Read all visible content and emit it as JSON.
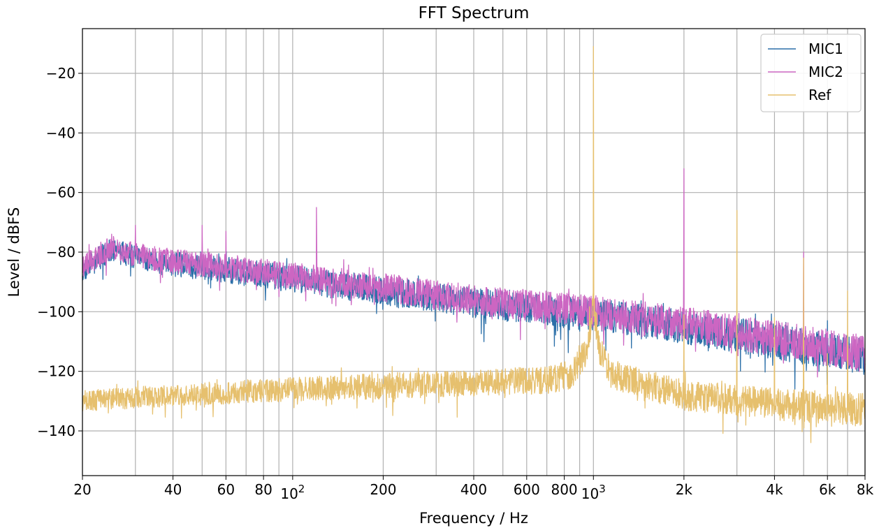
{
  "chart_data": {
    "type": "line",
    "title": "FFT Spectrum",
    "xlabel": "Frequency / Hz",
    "ylabel": "Level / dBFS",
    "x_scale": "log",
    "xlim": [
      20,
      8000
    ],
    "ylim": [
      -155,
      -5
    ],
    "grid": true,
    "grid_x_values": [
      20,
      30,
      40,
      50,
      60,
      70,
      80,
      90,
      100,
      200,
      300,
      400,
      500,
      600,
      700,
      800,
      900,
      1000,
      2000,
      3000,
      4000,
      5000,
      6000,
      7000,
      8000
    ],
    "grid_y_values": [
      -140,
      -120,
      -100,
      -80,
      -60,
      -40,
      -20
    ],
    "legend_position": "top-right",
    "x_ticks": [
      {
        "value": 20,
        "label": "20"
      },
      {
        "value": 40,
        "label": "40"
      },
      {
        "value": 60,
        "label": "60"
      },
      {
        "value": 80,
        "label": "80"
      },
      {
        "value": 100,
        "label": "10",
        "exponent": "2"
      },
      {
        "value": 200,
        "label": "200"
      },
      {
        "value": 400,
        "label": "400"
      },
      {
        "value": 600,
        "label": "600"
      },
      {
        "value": 800,
        "label": "800"
      },
      {
        "value": 1000,
        "label": "10",
        "exponent": "3"
      },
      {
        "value": 2000,
        "label": "2k"
      },
      {
        "value": 4000,
        "label": "4k"
      },
      {
        "value": 6000,
        "label": "6k"
      },
      {
        "value": 8000,
        "label": "8k"
      }
    ],
    "y_ticks": [
      {
        "value": -140,
        "label": "−140"
      },
      {
        "value": -120,
        "label": "−120"
      },
      {
        "value": -100,
        "label": "−100"
      },
      {
        "value": -80,
        "label": "−80"
      },
      {
        "value": -60,
        "label": "−60"
      },
      {
        "value": -40,
        "label": "−40"
      },
      {
        "value": -20,
        "label": "−20"
      }
    ],
    "series": [
      {
        "name": "MIC1",
        "color": "#2b6fa8",
        "baseline": [
          [
            20,
            -86
          ],
          [
            25,
            -79
          ],
          [
            30,
            -82
          ],
          [
            40,
            -84
          ],
          [
            60,
            -86
          ],
          [
            100,
            -89
          ],
          [
            200,
            -93
          ],
          [
            400,
            -97
          ],
          [
            800,
            -100
          ],
          [
            1000,
            -101
          ],
          [
            2000,
            -105
          ],
          [
            4000,
            -110
          ],
          [
            8000,
            -115
          ]
        ],
        "noise_amplitude": 4.5,
        "seed": 11,
        "peaks": [
          [
            1000,
            -90
          ],
          [
            2000,
            -99
          ],
          [
            4000,
            -107
          ],
          [
            5000,
            -106
          ],
          [
            6000,
            -103
          ]
        ]
      },
      {
        "name": "MIC2",
        "color": "#cc66c2",
        "baseline": [
          [
            20,
            -85
          ],
          [
            25,
            -78
          ],
          [
            30,
            -81
          ],
          [
            40,
            -83
          ],
          [
            60,
            -85
          ],
          [
            100,
            -88
          ],
          [
            200,
            -92
          ],
          [
            400,
            -96
          ],
          [
            800,
            -99
          ],
          [
            1000,
            -100
          ],
          [
            2000,
            -104
          ],
          [
            4000,
            -109
          ],
          [
            8000,
            -114
          ]
        ],
        "noise_amplitude": 4.5,
        "seed": 23,
        "peaks": [
          [
            30,
            -71
          ],
          [
            50,
            -71
          ],
          [
            60,
            -73
          ],
          [
            120,
            -65
          ],
          [
            1000,
            -88
          ],
          [
            2000,
            -52
          ],
          [
            5000,
            -80
          ]
        ]
      },
      {
        "name": "Ref",
        "color": "#e6c06e",
        "baseline": [
          [
            20,
            -130
          ],
          [
            40,
            -128
          ],
          [
            100,
            -126
          ],
          [
            400,
            -124
          ],
          [
            700,
            -123
          ],
          [
            850,
            -121
          ],
          [
            950,
            -113
          ],
          [
            1000,
            -98
          ],
          [
            1050,
            -113
          ],
          [
            1150,
            -121
          ],
          [
            2000,
            -128
          ],
          [
            4000,
            -131
          ],
          [
            8000,
            -133
          ]
        ],
        "noise_amplitude": 4.0,
        "seed": 37,
        "peaks": [
          [
            1000,
            -11
          ],
          [
            2000,
            -101
          ],
          [
            3000,
            -66
          ],
          [
            4000,
            -102
          ],
          [
            5000,
            -82
          ],
          [
            6000,
            -114
          ],
          [
            7000,
            -93
          ]
        ]
      }
    ]
  }
}
